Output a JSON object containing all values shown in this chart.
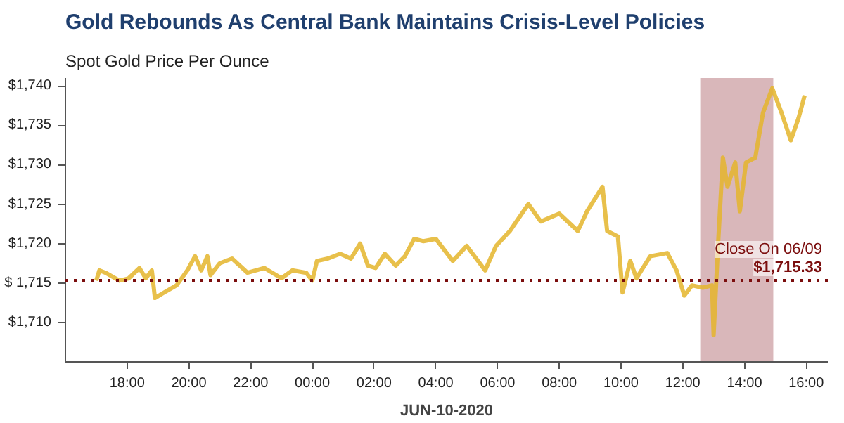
{
  "chart_data": {
    "type": "line",
    "title": "Gold Rebounds As Central Bank Maintains Crisis-Level Policies",
    "subtitle": "Spot Gold Price Per Ounce",
    "xlabel": "JUN-10-2020",
    "x": [
      "2020-06-09T17:00",
      "2020-06-09T17:06",
      "2020-06-09T17:18",
      "2020-06-09T17:45",
      "2020-06-09T18:03",
      "2020-06-09T18:24",
      "2020-06-09T18:36",
      "2020-06-09T18:48",
      "2020-06-09T18:54",
      "2020-06-09T19:12",
      "2020-06-09T19:36",
      "2020-06-09T19:57",
      "2020-06-09T20:12",
      "2020-06-09T20:24",
      "2020-06-09T20:36",
      "2020-06-09T20:42",
      "2020-06-09T21:00",
      "2020-06-09T21:24",
      "2020-06-09T21:54",
      "2020-06-09T22:27",
      "2020-06-09T23:00",
      "2020-06-09T23:21",
      "2020-06-09T23:48",
      "2020-06-10T00:00",
      "2020-06-10T00:09",
      "2020-06-10T00:30",
      "2020-06-10T00:54",
      "2020-06-10T01:15",
      "2020-06-10T01:33",
      "2020-06-10T01:48",
      "2020-06-10T02:03",
      "2020-06-10T02:21",
      "2020-06-10T02:42",
      "2020-06-10T03:00",
      "2020-06-10T03:18",
      "2020-06-10T03:36",
      "2020-06-10T04:00",
      "2020-06-10T04:33",
      "2020-06-10T05:00",
      "2020-06-10T05:36",
      "2020-06-10T05:57",
      "2020-06-10T06:24",
      "2020-06-10T07:00",
      "2020-06-10T07:24",
      "2020-06-10T08:00",
      "2020-06-10T08:36",
      "2020-06-10T08:54",
      "2020-06-10T09:24",
      "2020-06-10T09:33",
      "2020-06-10T09:54",
      "2020-06-10T10:03",
      "2020-06-10T10:18",
      "2020-06-10T10:30",
      "2020-06-10T10:57",
      "2020-06-10T11:30",
      "2020-06-10T11:48",
      "2020-06-10T12:03",
      "2020-06-10T12:18",
      "2020-06-10T12:39",
      "2020-06-10T12:57",
      "2020-06-10T13:00",
      "2020-06-10T13:09",
      "2020-06-10T13:18",
      "2020-06-10T13:27",
      "2020-06-10T13:42",
      "2020-06-10T13:51",
      "2020-06-10T14:03",
      "2020-06-10T14:21",
      "2020-06-10T14:36",
      "2020-06-10T14:54",
      "2020-06-10T15:12",
      "2020-06-10T15:30",
      "2020-06-10T15:45",
      "2020-06-10T15:57"
    ],
    "series": [
      {
        "color": "#e4b52b",
        "values": [
          1715.3,
          1716.6,
          1716.3,
          1715.3,
          1715.6,
          1716.9,
          1715.6,
          1716.6,
          1713.1,
          1713.8,
          1714.7,
          1716.6,
          1718.4,
          1716.6,
          1718.4,
          1716.0,
          1717.5,
          1718.1,
          1716.3,
          1716.9,
          1715.6,
          1716.6,
          1716.3,
          1715.3,
          1717.8,
          1718.1,
          1718.7,
          1718.1,
          1720.0,
          1717.2,
          1716.9,
          1718.7,
          1717.2,
          1718.4,
          1720.6,
          1720.3,
          1720.6,
          1717.8,
          1719.7,
          1716.6,
          1719.7,
          1721.6,
          1725.0,
          1722.8,
          1723.8,
          1721.6,
          1724.1,
          1727.2,
          1721.6,
          1720.9,
          1713.8,
          1717.8,
          1715.6,
          1718.4,
          1718.8,
          1716.6,
          1713.4,
          1714.7,
          1714.4,
          1714.7,
          1708.4,
          1720.3,
          1730.9,
          1727.2,
          1730.3,
          1724.1,
          1730.3,
          1730.9,
          1736.6,
          1739.7,
          1736.6,
          1733.1,
          1735.9,
          1738.8
        ]
      }
    ],
    "xlim": [
      "2020-06-09T16:00",
      "2020-06-10T16:42"
    ],
    "ylim": [
      1705,
      1741
    ],
    "xticks": [
      {
        "value": "2020-06-09T18:00",
        "label": "18:00"
      },
      {
        "value": "2020-06-09T20:00",
        "label": "20:00"
      },
      {
        "value": "2020-06-09T22:00",
        "label": "22:00"
      },
      {
        "value": "2020-06-10T00:00",
        "label": "00:00"
      },
      {
        "value": "2020-06-10T02:00",
        "label": "02:00"
      },
      {
        "value": "2020-06-10T04:00",
        "label": "04:00"
      },
      {
        "value": "2020-06-10T06:00",
        "label": "06:00"
      },
      {
        "value": "2020-06-10T08:00",
        "label": "08:00"
      },
      {
        "value": "2020-06-10T10:00",
        "label": "10:00"
      },
      {
        "value": "2020-06-10T12:00",
        "label": "12:00"
      },
      {
        "value": "2020-06-10T14:00",
        "label": "14:00"
      },
      {
        "value": "2020-06-10T16:00",
        "label": "16:00"
      }
    ],
    "yticks": [
      {
        "value": 1710,
        "label": "$1,710"
      },
      {
        "value": 1715,
        "label": "$ 1,715"
      },
      {
        "value": 1720,
        "label": "$1,720"
      },
      {
        "value": 1725,
        "label": "$1,725"
      },
      {
        "value": 1730,
        "label": "$1,730"
      },
      {
        "value": 1735,
        "label": "$1,735"
      },
      {
        "value": 1740,
        "label": "$1,740"
      }
    ],
    "ref_lines": [
      {
        "axis": "y",
        "value": 1715.33,
        "label": "Close On 06/09\n$1,715.33",
        "color": "#7b0d0d",
        "line_style": "dotted"
      }
    ],
    "bands": [
      {
        "axis": "x",
        "from": "2020-06-10T12:34",
        "to": "2020-06-10T14:56",
        "color": "#c9999c"
      }
    ],
    "grid": false,
    "line_style": "solid",
    "marker": "none"
  }
}
